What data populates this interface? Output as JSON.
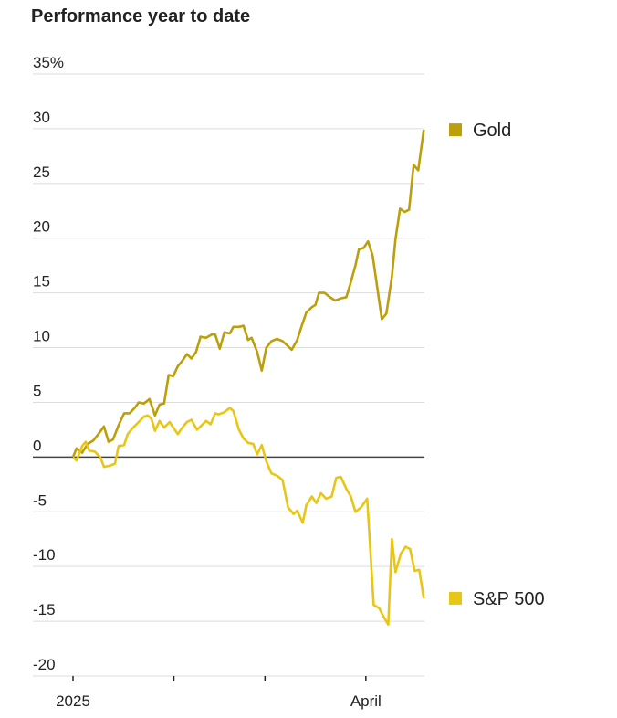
{
  "chart_data": {
    "type": "line",
    "title": "Performance year to date",
    "xlim": [
      0,
      108
    ],
    "xticks": [
      {
        "value": 0,
        "label": "2025"
      },
      {
        "value": 31,
        "label": null
      },
      {
        "value": 59,
        "label": null
      },
      {
        "value": 90,
        "label": "April"
      }
    ],
    "ylim": [
      -20,
      35
    ],
    "yticks": [
      -20,
      -15,
      -10,
      -5,
      0,
      5,
      10,
      15,
      20,
      25,
      30,
      {
        "value": 35,
        "label": "35%"
      }
    ],
    "grid": true,
    "series": [
      {
        "name": "Gold",
        "color": "#bd9f0b",
        "x": [
          0,
          1.1,
          2.8,
          4.5,
          6.2,
          7.8,
          9.5,
          10.9,
          12.3,
          14,
          15.7,
          17.4,
          19,
          20.2,
          21.8,
          23.5,
          25.2,
          26.6,
          28,
          29.4,
          30.8,
          32.2,
          33.6,
          35,
          36.4,
          37.8,
          39.2,
          40.9,
          42.6,
          43.7,
          45.1,
          46.5,
          48.2,
          49.3,
          51,
          52.4,
          53.8,
          54.9,
          56.6,
          58,
          59.4,
          61,
          62.7,
          64.4,
          65.8,
          67.2,
          68.9,
          70.3,
          71.7,
          73.4,
          74.5,
          75.6,
          77.3,
          79,
          80.6,
          82.3,
          84,
          85.1,
          86.8,
          87.9,
          89.3,
          90.7,
          92.1,
          93.5,
          94.9,
          96.3,
          98,
          99.1,
          100.5,
          101.9,
          103.3,
          104.7,
          106.1,
          107.8
        ],
        "values": [
          0,
          0.8,
          0.4,
          1.2,
          1.5,
          2.1,
          2.8,
          1.4,
          1.6,
          2.9,
          4.0,
          4.0,
          4.5,
          5.0,
          4.9,
          5.3,
          3.8,
          4.8,
          4.9,
          7.5,
          7.4,
          8.3,
          8.8,
          9.4,
          9.0,
          9.6,
          11.0,
          10.9,
          11.2,
          11.2,
          9.9,
          11.4,
          11.3,
          11.9,
          11.9,
          12.0,
          10.7,
          10.9,
          9.6,
          7.9,
          10.0,
          10.6,
          10.8,
          10.6,
          10.2,
          9.8,
          10.7,
          12.0,
          13.2,
          13.7,
          13.9,
          15.0,
          15.0,
          14.6,
          14.3,
          14.5,
          14.6,
          15.7,
          17.5,
          19.0,
          19.1,
          19.7,
          18.4,
          15.5,
          12.6,
          13.1,
          16.5,
          19.9,
          22.7,
          22.4,
          22.6,
          26.7,
          26.2,
          29.9
        ]
      },
      {
        "name": "S&P 500",
        "color": "#e8c615",
        "x": [
          0,
          1.1,
          2.8,
          3.9,
          5,
          6.7,
          8.4,
          9.5,
          11.2,
          12.9,
          14,
          15.7,
          16.8,
          18.5,
          20.2,
          21.8,
          23,
          24.1,
          25.2,
          26.6,
          28,
          29.7,
          30.8,
          32.2,
          33.6,
          35,
          36.4,
          38.1,
          39.2,
          40.9,
          42.3,
          43.7,
          44.8,
          46.5,
          48.2,
          49.3,
          51,
          52.4,
          53.8,
          55.4,
          56.6,
          58,
          59.4,
          61,
          62.7,
          64.4,
          66.1,
          67.8,
          68.9,
          70.6,
          71.7,
          73.4,
          74.8,
          76.2,
          77.8,
          79.5,
          80.9,
          82.3,
          84,
          85.4,
          86.8,
          88.5,
          90.4,
          92.4,
          94.1,
          95.5,
          96.9,
          98,
          99.1,
          100.8,
          102.2,
          103.6,
          105,
          106.4,
          107.8
        ],
        "values": [
          0,
          -0.3,
          1.0,
          1.4,
          0.6,
          0.5,
          0,
          -0.9,
          -0.8,
          -0.6,
          1.0,
          1.1,
          2.1,
          2.7,
          3.2,
          3.7,
          3.8,
          3.5,
          2.4,
          3.3,
          2.7,
          3.2,
          2.7,
          2.1,
          2.7,
          3.2,
          3.4,
          2.5,
          2.8,
          3.3,
          3.0,
          4.0,
          3.9,
          4.1,
          4.5,
          4.2,
          2.5,
          1.7,
          1.3,
          1.2,
          0.25,
          1.1,
          -0.4,
          -1.5,
          -1.7,
          -2.1,
          -4.6,
          -5.2,
          -4.9,
          -6.0,
          -4.4,
          -3.6,
          -4.2,
          -3.3,
          -3.8,
          -3.6,
          -1.9,
          -1.8,
          -2.9,
          -3.6,
          -5.0,
          -4.6,
          -3.8,
          -13.5,
          -13.8,
          -14.6,
          -15.3,
          -7.5,
          -10.5,
          -8.8,
          -8.2,
          -8.4,
          -10.4,
          -10.3,
          -12.9
        ]
      }
    ]
  }
}
